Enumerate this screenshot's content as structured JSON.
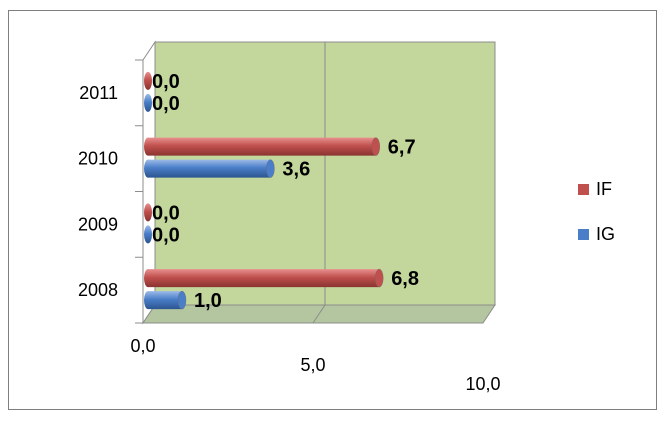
{
  "chart_data": {
    "type": "bar",
    "orientation": "horizontal",
    "three_d": true,
    "categories": [
      "2008",
      "2009",
      "2010",
      "2011"
    ],
    "series": [
      {
        "name": "IG",
        "values": [
          1.0,
          0.0,
          3.6,
          0.0
        ],
        "labels": [
          "1,0",
          "0,0",
          "3,6",
          "0,0"
        ],
        "color": "#4a7ec8"
      },
      {
        "name": "IF",
        "values": [
          6.8,
          0.0,
          6.7,
          0.0
        ],
        "labels": [
          "6,8",
          "0,0",
          "6,7",
          "0,0"
        ],
        "color": "#c0504d"
      }
    ],
    "x_ticks": [
      "0,0",
      "5,0",
      "10,0"
    ],
    "xlim": [
      0,
      10
    ],
    "grid": true,
    "legend_position": "right",
    "wall_color": "#c3d69b"
  }
}
